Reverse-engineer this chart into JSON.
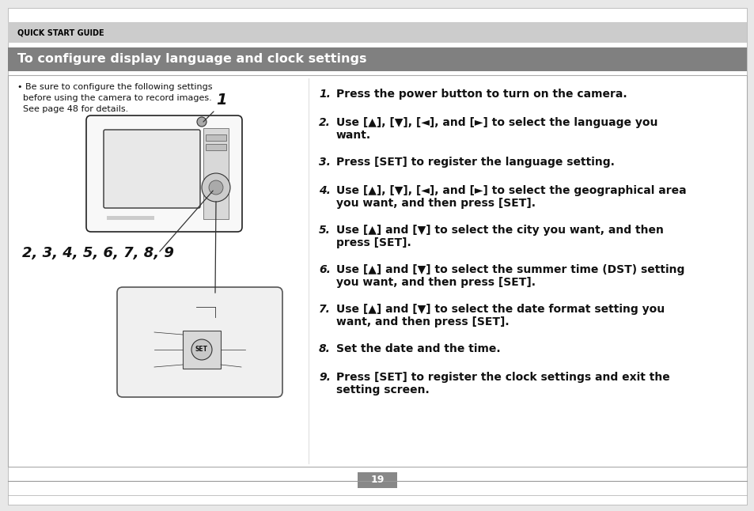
{
  "page_bg": "#ffffff",
  "outer_bg": "#e8e8e8",
  "header_bg": "#cccccc",
  "header_text": "QUICK START GUIDE",
  "header_text_color": "#000000",
  "title_bg": "#808080",
  "title_text": "To configure display language and clock settings",
  "title_text_color": "#ffffff",
  "bullet_line1": "• Be sure to configure the following settings",
  "bullet_line2": "  before using the camera to record images.",
  "bullet_line3": "  See page 48 for details.",
  "label_1": "1",
  "label_2_9": "2, 3, 4, 5, 6, 7, 8, 9",
  "steps": [
    {
      "num": "1.",
      "text": "Press the power button to turn on the camera."
    },
    {
      "num": "2.",
      "text": "Use [▲], [▼], [◄], and [►] to select the language you\nwant."
    },
    {
      "num": "3.",
      "text": "Press [SET] to register the language setting."
    },
    {
      "num": "4.",
      "text": "Use [▲], [▼], [◄], and [►] to select the geographical area\nyou want, and then press [SET]."
    },
    {
      "num": "5.",
      "text": "Use [▲] and [▼] to select the city you want, and then\npress [SET]."
    },
    {
      "num": "6.",
      "text": "Use [▲] and [▼] to select the summer time (DST) setting\nyou want, and then press [SET]."
    },
    {
      "num": "7.",
      "text": "Use [▲] and [▼] to select the date format setting you\nwant, and then press [SET]."
    },
    {
      "num": "8.",
      "text": "Set the date and the time."
    },
    {
      "num": "9.",
      "text": "Press [SET] to register the clock settings and exit the\nsetting screen."
    }
  ],
  "page_number": "19",
  "page_number_bg": "#888888",
  "page_number_color": "#ffffff"
}
